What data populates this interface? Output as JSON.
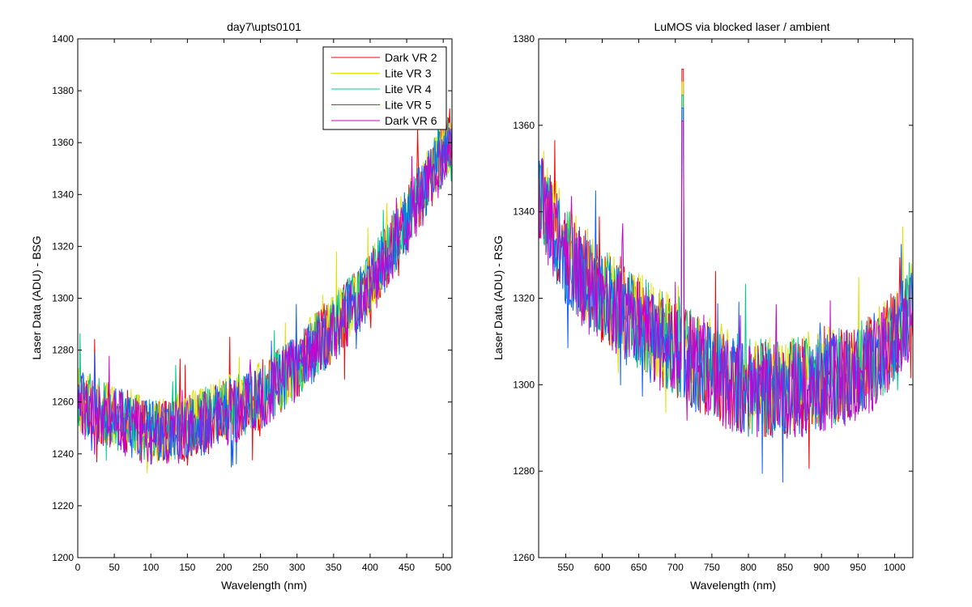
{
  "chart_data": [
    {
      "type": "line",
      "title": "day7\\upts0101",
      "xlabel": "Wavelength (nm)",
      "ylabel": "Laser Data (ADU) - BSG",
      "xlim": [
        0,
        512
      ],
      "ylim": [
        1200,
        1400
      ],
      "xticks": [
        0,
        50,
        100,
        150,
        200,
        250,
        300,
        350,
        400,
        450,
        500
      ],
      "yticks": [
        1200,
        1220,
        1240,
        1260,
        1280,
        1300,
        1320,
        1340,
        1360,
        1380,
        1400
      ],
      "legend_position": "top-right",
      "noise_amplitude": 8,
      "trend": {
        "x": [
          0,
          50,
          100,
          150,
          200,
          250,
          300,
          350,
          400,
          450,
          512
        ],
        "y": [
          1260,
          1254,
          1248,
          1250,
          1256,
          1262,
          1274,
          1288,
          1305,
          1330,
          1362
        ]
      },
      "series": [
        {
          "name": "Dark VR 2",
          "color": "#ff0000",
          "offset": 0
        },
        {
          "name": "Lite VR 3",
          "color": "#e0e000",
          "offset": 1
        },
        {
          "name": "Lite VR 4",
          "color": "#00cc88",
          "offset": 0.5
        },
        {
          "name": "Lite VR 5",
          "color": "#1060ff",
          "offset": -0.5
        },
        {
          "name": "Dark VR 6",
          "color": "#cc00cc",
          "offset": -1
        }
      ]
    },
    {
      "type": "line",
      "title": "LuMOS via blocked laser / ambient",
      "xlabel": "Wavelength (nm)",
      "ylabel": "Laser Data (ADU) - RSG",
      "xlim": [
        513,
        1025
      ],
      "ylim": [
        1260,
        1380
      ],
      "xticks": [
        550,
        600,
        650,
        700,
        750,
        800,
        850,
        900,
        950,
        1000
      ],
      "yticks": [
        1260,
        1280,
        1300,
        1320,
        1340,
        1360,
        1380
      ],
      "noise_amplitude": 7,
      "trend": {
        "x": [
          513,
          550,
          600,
          650,
          700,
          750,
          800,
          850,
          900,
          950,
          1000,
          1025
        ],
        "y": [
          1345,
          1330,
          1320,
          1314,
          1308,
          1303,
          1299,
          1299,
          1301,
          1303,
          1310,
          1320
        ]
      },
      "spike": {
        "x": 710,
        "y": 1373
      },
      "series": [
        {
          "name": "Dark VR 2",
          "color": "#ff0000",
          "offset": 0
        },
        {
          "name": "Lite VR 3",
          "color": "#e0e000",
          "offset": 1
        },
        {
          "name": "Lite VR 4",
          "color": "#00cc88",
          "offset": 0.5
        },
        {
          "name": "Lite VR 5",
          "color": "#1060ff",
          "offset": -0.5
        },
        {
          "name": "Dark VR 6",
          "color": "#cc00cc",
          "offset": -1
        }
      ]
    }
  ]
}
